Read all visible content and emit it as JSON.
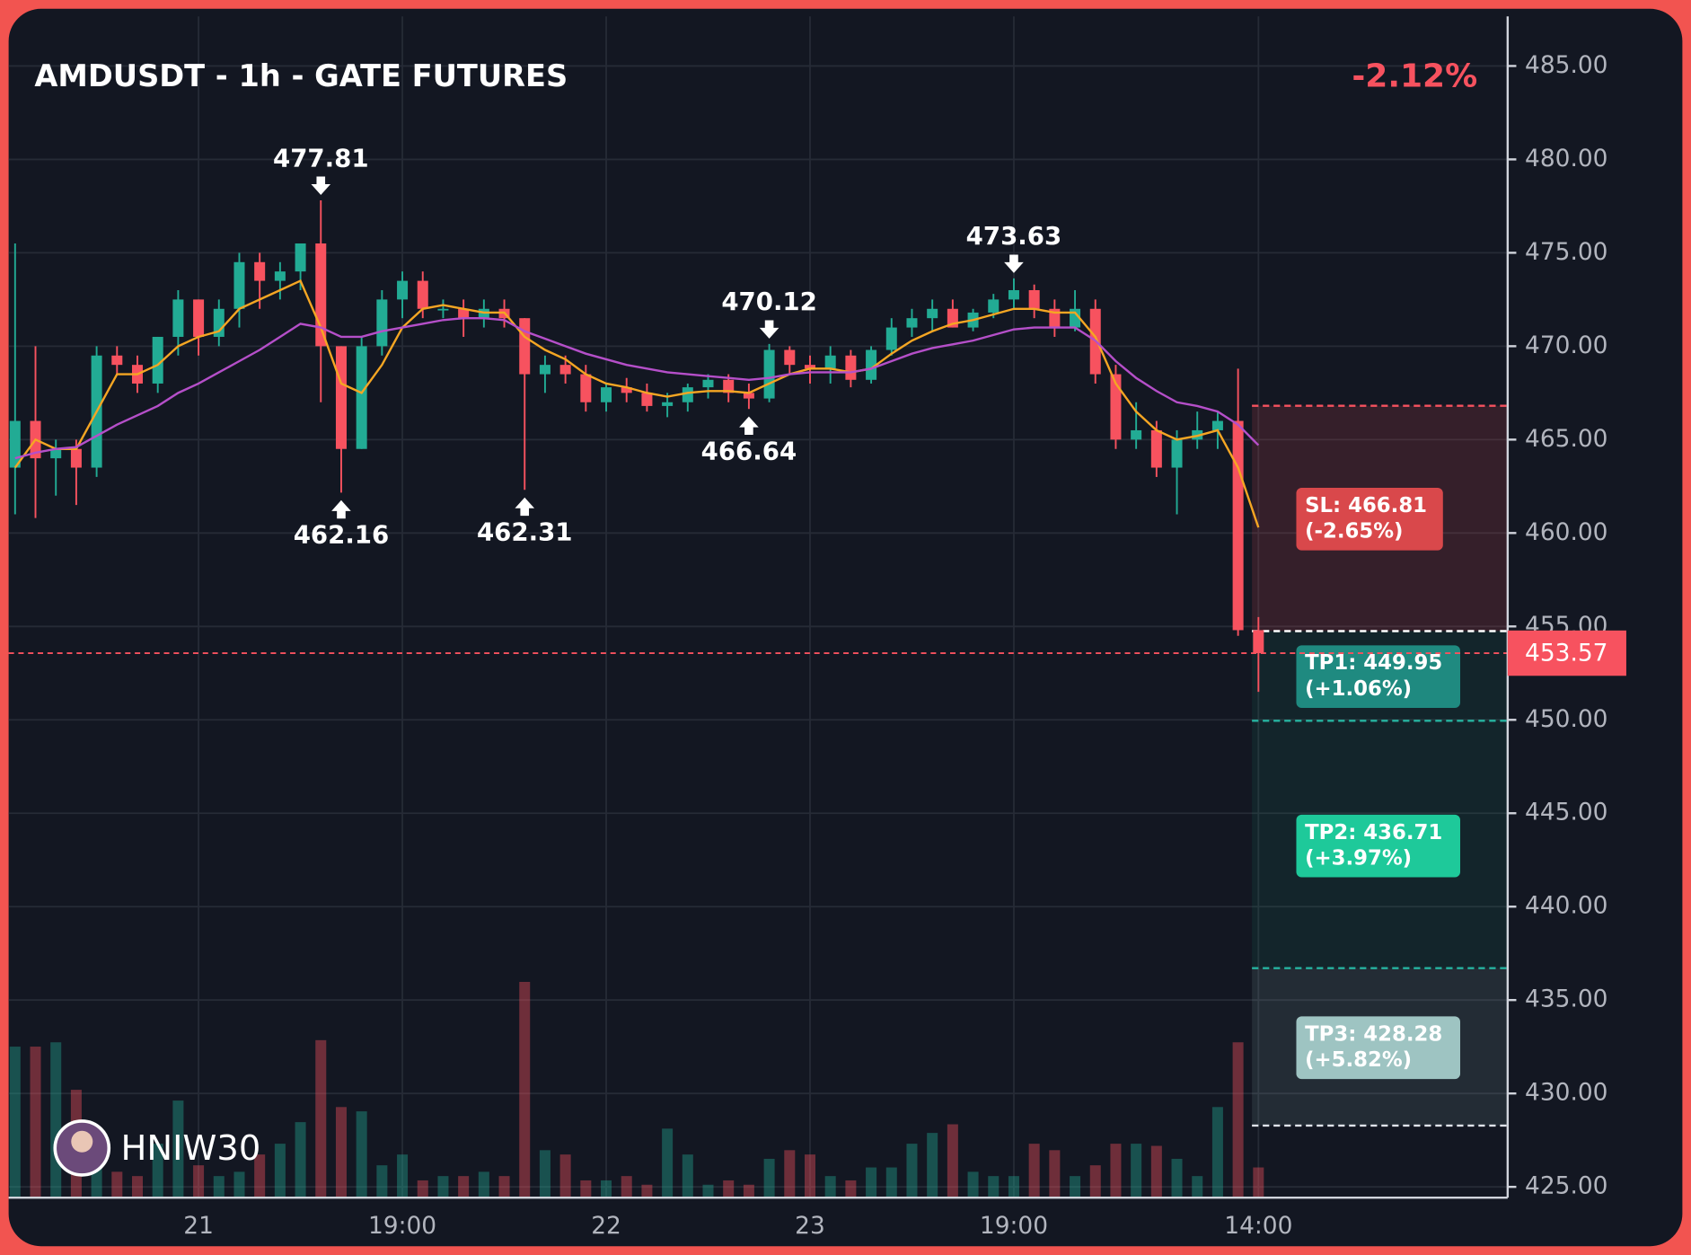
{
  "chart_data": {
    "type": "candlestick",
    "title": "AMDUSDT - 1h - GATE FUTURES",
    "change": "-2.12%",
    "watermark": "HNIW30",
    "up_color": "#22ab94",
    "down_color": "#f7525f",
    "ylim": [
      425,
      485
    ],
    "yticks": [
      {
        "value": 425,
        "label": "425.00"
      },
      {
        "value": 430,
        "label": "430.00"
      },
      {
        "value": 435,
        "label": "435.00"
      },
      {
        "value": 440,
        "label": "440.00"
      },
      {
        "value": 445,
        "label": "445.00"
      },
      {
        "value": 450,
        "label": "450.00"
      },
      {
        "value": 455,
        "label": "455.00"
      },
      {
        "value": 460,
        "label": "460.00"
      },
      {
        "value": 465,
        "label": "465.00"
      },
      {
        "value": 470,
        "label": "470.00"
      },
      {
        "value": 475,
        "label": "475.00"
      },
      {
        "value": 480,
        "label": "480.00"
      },
      {
        "value": 485,
        "label": "485.00"
      }
    ],
    "grid": true,
    "categories": [
      null,
      null,
      null,
      null,
      null,
      null,
      null,
      null,
      null,
      "21",
      null,
      null,
      null,
      null,
      null,
      null,
      null,
      null,
      null,
      "19:00",
      null,
      null,
      null,
      null,
      null,
      null,
      null,
      null,
      null,
      "22",
      null,
      null,
      null,
      null,
      null,
      null,
      null,
      null,
      null,
      "23",
      null,
      null,
      null,
      null,
      null,
      null,
      null,
      null,
      null,
      "19:00",
      null,
      null,
      null,
      null,
      null,
      null,
      null,
      null,
      null,
      null,
      null,
      "14:00"
    ],
    "candles": [
      [
        463.5,
        475.5,
        461,
        466
      ],
      [
        466,
        470,
        460.8,
        464
      ],
      [
        464,
        465,
        462,
        464.5
      ],
      [
        464.5,
        465,
        461.5,
        463.5
      ],
      [
        463.5,
        470,
        463,
        469.5
      ],
      [
        469.5,
        470,
        468.5,
        469
      ],
      [
        469,
        469.5,
        467.5,
        468
      ],
      [
        468,
        470.5,
        467.5,
        470.5
      ],
      [
        470.5,
        473,
        469.5,
        472.5
      ],
      [
        472.5,
        472.5,
        469.5,
        470.5
      ],
      [
        470.5,
        472.5,
        470,
        472
      ],
      [
        472,
        475,
        471,
        474.5
      ],
      [
        474.5,
        475,
        472,
        473.5
      ],
      [
        473.5,
        474.5,
        472.5,
        474
      ],
      [
        474,
        475.5,
        473,
        475.5
      ],
      [
        475.5,
        477.81,
        467,
        470
      ],
      [
        470,
        470,
        462.16,
        464.5
      ],
      [
        464.5,
        470.5,
        464.5,
        470
      ],
      [
        470,
        473,
        469.5,
        472.5
      ],
      [
        472.5,
        474,
        471.5,
        473.5
      ],
      [
        473.5,
        474,
        471.5,
        472
      ],
      [
        472,
        472.5,
        471.5,
        472
      ],
      [
        472,
        472.5,
        470.5,
        471.5
      ],
      [
        471.5,
        472.5,
        471,
        472
      ],
      [
        472,
        472.5,
        471,
        471.5
      ],
      [
        471.5,
        471.5,
        462.31,
        468.5
      ],
      [
        468.5,
        469.5,
        467.5,
        469
      ],
      [
        469,
        469.5,
        468,
        468.5
      ],
      [
        468.5,
        469,
        466.5,
        467
      ],
      [
        467,
        468,
        466.5,
        467.8
      ],
      [
        467.8,
        468.3,
        467,
        467.5
      ],
      [
        467.5,
        468,
        466.5,
        466.8
      ],
      [
        466.8,
        467.5,
        466.2,
        467
      ],
      [
        467,
        468,
        466.5,
        467.8
      ],
      [
        467.8,
        468.5,
        467.2,
        468.2
      ],
      [
        468.2,
        468.5,
        467,
        467.5
      ],
      [
        467.5,
        468,
        466.64,
        467.2
      ],
      [
        467.2,
        470.12,
        467,
        469.8
      ],
      [
        469.8,
        470,
        468.5,
        469
      ],
      [
        469,
        469.5,
        468,
        468.8
      ],
      [
        468.8,
        470,
        468,
        469.5
      ],
      [
        469.5,
        469.8,
        467.8,
        468.2
      ],
      [
        468.2,
        470,
        468,
        469.8
      ],
      [
        469.8,
        471.5,
        469.5,
        471
      ],
      [
        471,
        472,
        470.5,
        471.5
      ],
      [
        471.5,
        472.5,
        470.8,
        472
      ],
      [
        472,
        472.5,
        471,
        471
      ],
      [
        471,
        472,
        470.8,
        471.8
      ],
      [
        471.8,
        472.8,
        471.5,
        472.5
      ],
      [
        472.5,
        473.63,
        472,
        473
      ],
      [
        473,
        473.3,
        471.5,
        472
      ],
      [
        472,
        472.5,
        470.5,
        471
      ],
      [
        471,
        473,
        470.8,
        472
      ],
      [
        472,
        472.5,
        468,
        468.5
      ],
      [
        468.5,
        469,
        464.5,
        465
      ],
      [
        465,
        467,
        464.5,
        465.5
      ],
      [
        465.5,
        466,
        463,
        463.5
      ],
      [
        463.5,
        465.5,
        461,
        465
      ],
      [
        465,
        466.5,
        464.5,
        465.5
      ],
      [
        465.5,
        466.5,
        464.5,
        466
      ],
      [
        466,
        468.8,
        454.5,
        454.8
      ],
      [
        454.8,
        455.5,
        451.5,
        453.57
      ]
    ],
    "vlim": [
      0,
      100
    ],
    "volumes": [
      70,
      70,
      72,
      50,
      20,
      12,
      10,
      25,
      45,
      15,
      10,
      12,
      20,
      25,
      35,
      73,
      42,
      40,
      15,
      20,
      8,
      10,
      10,
      12,
      10,
      100,
      22,
      20,
      8,
      8,
      10,
      6,
      32,
      20,
      6,
      8,
      6,
      18,
      22,
      20,
      10,
      8,
      14,
      14,
      25,
      30,
      34,
      12,
      10,
      10,
      25,
      22,
      10,
      15,
      25,
      25,
      24,
      18,
      10,
      42,
      72,
      14
    ],
    "series": [
      {
        "color": "#f5a623",
        "values": [
          463.5,
          465,
          464.5,
          464.5,
          466.5,
          468.5,
          468.5,
          469,
          470,
          470.5,
          470.8,
          472,
          472.5,
          473,
          473.5,
          471,
          468,
          467.5,
          469,
          471,
          472,
          472.2,
          472,
          471.8,
          471.8,
          470.5,
          469.8,
          469.3,
          468.5,
          468,
          467.8,
          467.5,
          467.3,
          467.5,
          467.6,
          467.6,
          467.5,
          468,
          468.5,
          468.8,
          468.8,
          468.6,
          468.8,
          469.6,
          470.3,
          470.8,
          471.2,
          471.4,
          471.7,
          472,
          472,
          471.8,
          471.8,
          470.5,
          468,
          466.5,
          465.5,
          465,
          465.2,
          465.5,
          463.5,
          460.3
        ]
      },
      {
        "color": "#b54fc9",
        "values": [
          464,
          464.3,
          464.5,
          464.6,
          465.2,
          465.8,
          466.3,
          466.8,
          467.5,
          468,
          468.6,
          469.2,
          469.8,
          470.5,
          471.2,
          471,
          470.5,
          470.5,
          470.8,
          471,
          471.2,
          471.4,
          471.5,
          471.5,
          471.4,
          470.8,
          470.4,
          470,
          469.6,
          469.3,
          469,
          468.8,
          468.6,
          468.5,
          468.4,
          468.3,
          468.2,
          468.3,
          468.5,
          468.6,
          468.6,
          468.6,
          468.8,
          469.2,
          469.6,
          469.9,
          470.1,
          470.3,
          470.6,
          470.9,
          471,
          471,
          471,
          470.3,
          469.2,
          468.3,
          467.6,
          467,
          466.8,
          466.5,
          465.8,
          464.7
        ]
      }
    ],
    "extremes": [
      {
        "candle": 15,
        "field": 1
      },
      {
        "candle": 16,
        "field": 2
      },
      {
        "candle": 25,
        "field": 2
      },
      {
        "candle": 37,
        "field": 1
      },
      {
        "candle": 36,
        "field": 2
      },
      {
        "candle": 49,
        "field": 1
      }
    ],
    "trade": {
      "start": 61,
      "entry": 454.75,
      "levels": [
        {
          "name": "SL: 466.81",
          "change": "(-2.65%)",
          "value": 466.81,
          "color": "#d9484b",
          "line": "#f7525f"
        },
        {
          "name": "TP1: 449.95",
          "change": "(+1.06%)",
          "value": 449.95,
          "color": "#1f8a80",
          "line": "#26b3a0"
        },
        {
          "name": "TP2: 436.71",
          "change": "(+3.97%)",
          "value": 436.71,
          "color": "#1ec99a",
          "line": "#26b3a0"
        },
        {
          "name": "TP3: 428.28",
          "change": "(+5.82%)",
          "value": 428.28,
          "color": "#9ec4c2",
          "line": "#dfe3ea"
        }
      ]
    }
  }
}
